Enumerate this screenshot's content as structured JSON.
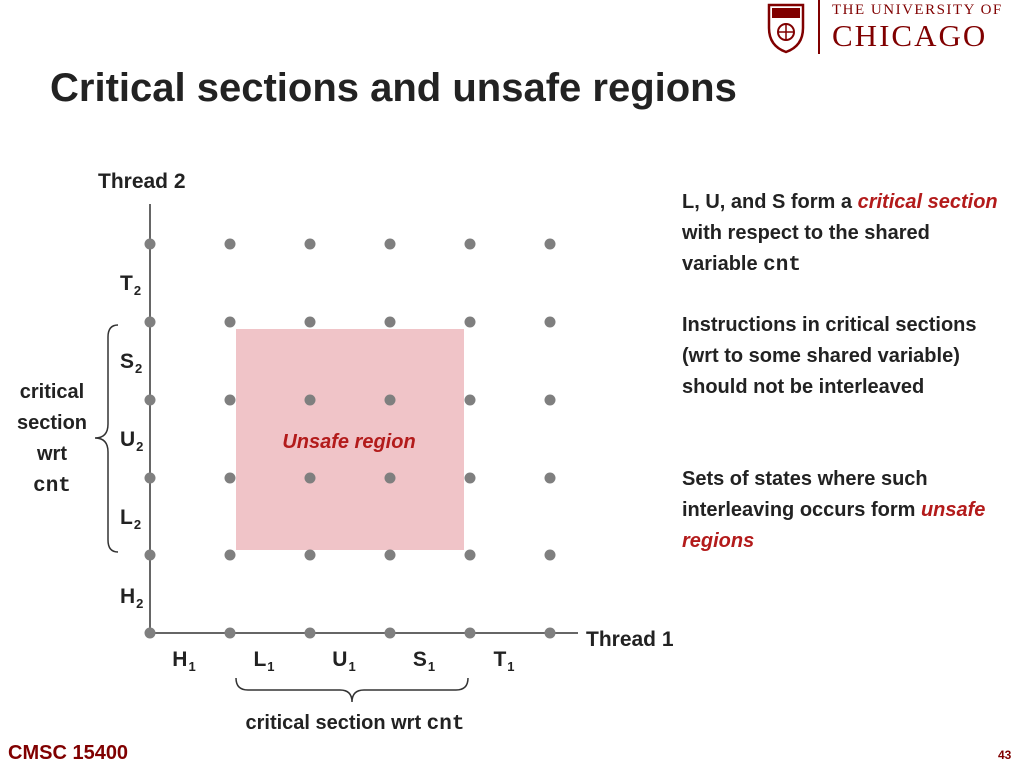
{
  "title": "Critical sections and unsafe regions",
  "logo": {
    "line1": "THE UNIVERSITY OF",
    "line2": "CHICAGO",
    "icon": "university-shield-icon"
  },
  "colors": {
    "accent": "#800000",
    "emphasis": "#b31b1b",
    "unsafe_fill": "#f0c4c8",
    "dot": "#7f7f7f"
  },
  "diagram": {
    "y_axis_title": "Thread 2",
    "x_axis_title": "Thread 1",
    "x_labels": [
      [
        "H",
        "1"
      ],
      [
        "L",
        "1"
      ],
      [
        "U",
        "1"
      ],
      [
        "S",
        "1"
      ],
      [
        "T",
        "1"
      ]
    ],
    "y_labels": [
      [
        "T",
        "2"
      ],
      [
        "S",
        "2"
      ],
      [
        "U",
        "2"
      ],
      [
        "L",
        "2"
      ],
      [
        "H",
        "2"
      ]
    ],
    "unsafe_label": "Unsafe region",
    "left_brace_label": [
      "critical",
      "section",
      "wrt",
      "cnt"
    ],
    "bottom_brace_label": {
      "text": "critical section wrt ",
      "code": "cnt"
    }
  },
  "notes": {
    "p1": {
      "a": "L, U, and S form a ",
      "b": "critical section",
      "c": " with respect to the shared variable ",
      "d": "cnt"
    },
    "p2": "Instructions in critical sections (wrt to some shared variable) should not be interleaved",
    "p3": {
      "a": "Sets of states where such interleaving occurs form ",
      "b": "unsafe regions"
    }
  },
  "footer": "CMSC 15400",
  "page_number": "43"
}
